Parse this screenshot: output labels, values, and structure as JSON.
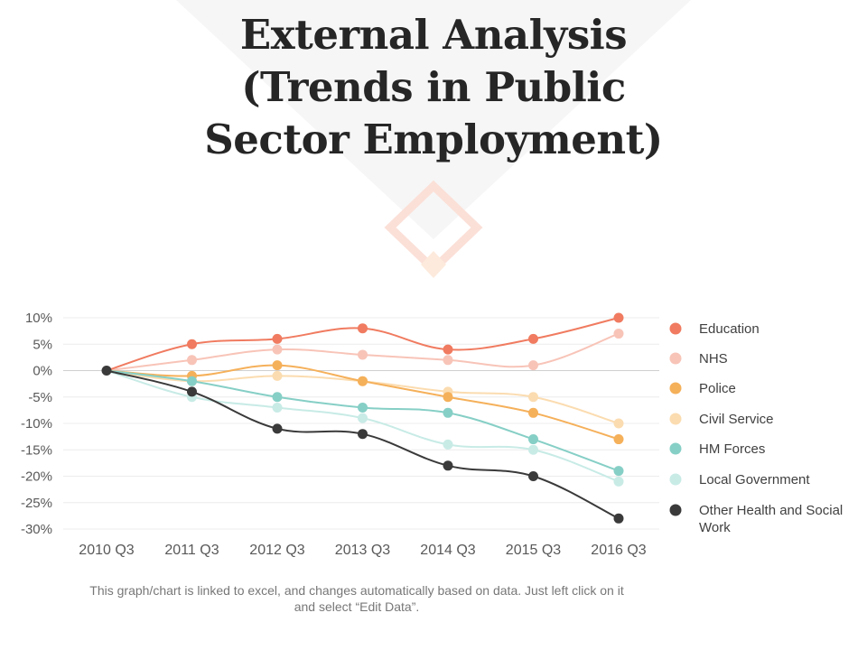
{
  "slide": {
    "title_lines": [
      "External Analysis",
      "(Trends in Public",
      "Sector Employment)"
    ],
    "note": "This graph/chart is linked to excel, and changes automatically based on data. Just left click on it and select “Edit Data”."
  },
  "chart_data": {
    "type": "line",
    "title": "",
    "xlabel": "",
    "ylabel": "",
    "categories": [
      "2010 Q3",
      "2011 Q3",
      "2012 Q3",
      "2013 Q3",
      "2014 Q3",
      "2015 Q3",
      "2016 Q3"
    ],
    "ylim": [
      -30,
      10
    ],
    "yticks": [
      10,
      5,
      0,
      -5,
      -10,
      -15,
      -20,
      -25,
      -30
    ],
    "ytick_labels": [
      "10%",
      "5%",
      "0%",
      "-5%",
      "-10%",
      "-15%",
      "-20%",
      "-25%",
      "-30%"
    ],
    "grid": true,
    "smooth": true,
    "legend_position": "right",
    "series": [
      {
        "name": "Education",
        "color": "#f07b60",
        "values": [
          0,
          5,
          6,
          8,
          4,
          6,
          10
        ]
      },
      {
        "name": "NHS",
        "color": "#f8c4b8",
        "values": [
          0,
          2,
          4,
          3,
          2,
          1,
          7
        ]
      },
      {
        "name": "Police",
        "color": "#f5b05a",
        "values": [
          0,
          -1,
          1,
          -2,
          -5,
          -8,
          -13
        ]
      },
      {
        "name": "Civil Service",
        "color": "#fbdcb0",
        "values": [
          0,
          -2,
          -1,
          -2,
          -4,
          -5,
          -10
        ]
      },
      {
        "name": "HM Forces",
        "color": "#86cfc6",
        "values": [
          0,
          -2,
          -5,
          -7,
          -8,
          -13,
          -19
        ]
      },
      {
        "name": "Local Government",
        "color": "#c8ebe6",
        "values": [
          0,
          -5,
          -7,
          -9,
          -14,
          -15,
          -21
        ]
      },
      {
        "name": "Other Health and Social Work",
        "color": "#3a3a3a",
        "values": [
          0,
          -4,
          -11,
          -12,
          -18,
          -20,
          -28
        ]
      }
    ]
  }
}
